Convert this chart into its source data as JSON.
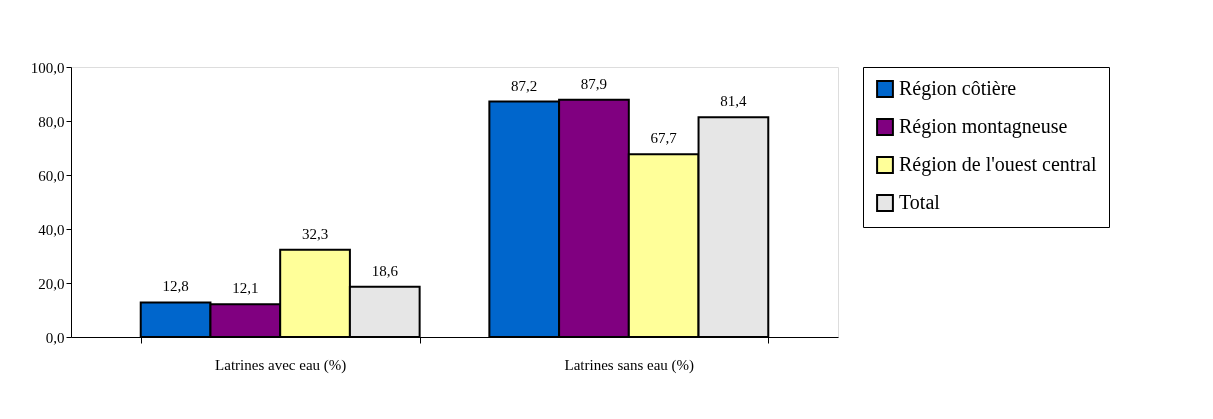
{
  "chart_data": {
    "type": "bar",
    "categories": [
      "Latrines avec eau (%)",
      "Latrines sans eau (%)"
    ],
    "series": [
      {
        "name": "Région côtière",
        "color": "#0066cc",
        "values": [
          12.8,
          87.2
        ],
        "value_labels": [
          "12,8",
          "87,2"
        ]
      },
      {
        "name": "Région montagneuse",
        "color": "#800080",
        "values": [
          12.1,
          87.9
        ],
        "value_labels": [
          "12,1",
          "87,9"
        ]
      },
      {
        "name": "Région de l'ouest central",
        "color": "#ffff99",
        "values": [
          32.3,
          67.7
        ],
        "value_labels": [
          "32,3",
          "67,7"
        ]
      },
      {
        "name": "Total",
        "color": "#e6e6e6",
        "values": [
          18.6,
          81.4
        ],
        "value_labels": [
          "18,6",
          "81,4"
        ]
      }
    ],
    "ylim": [
      0,
      100
    ],
    "yticks": [
      {
        "value": 0,
        "label": "0,0"
      },
      {
        "value": 20,
        "label": "20,0"
      },
      {
        "value": 40,
        "label": "40,0"
      },
      {
        "value": 60,
        "label": "60,0"
      },
      {
        "value": 80,
        "label": "80,0"
      },
      {
        "value": 100,
        "label": "100,0"
      }
    ],
    "grid": false,
    "legend": "right"
  }
}
